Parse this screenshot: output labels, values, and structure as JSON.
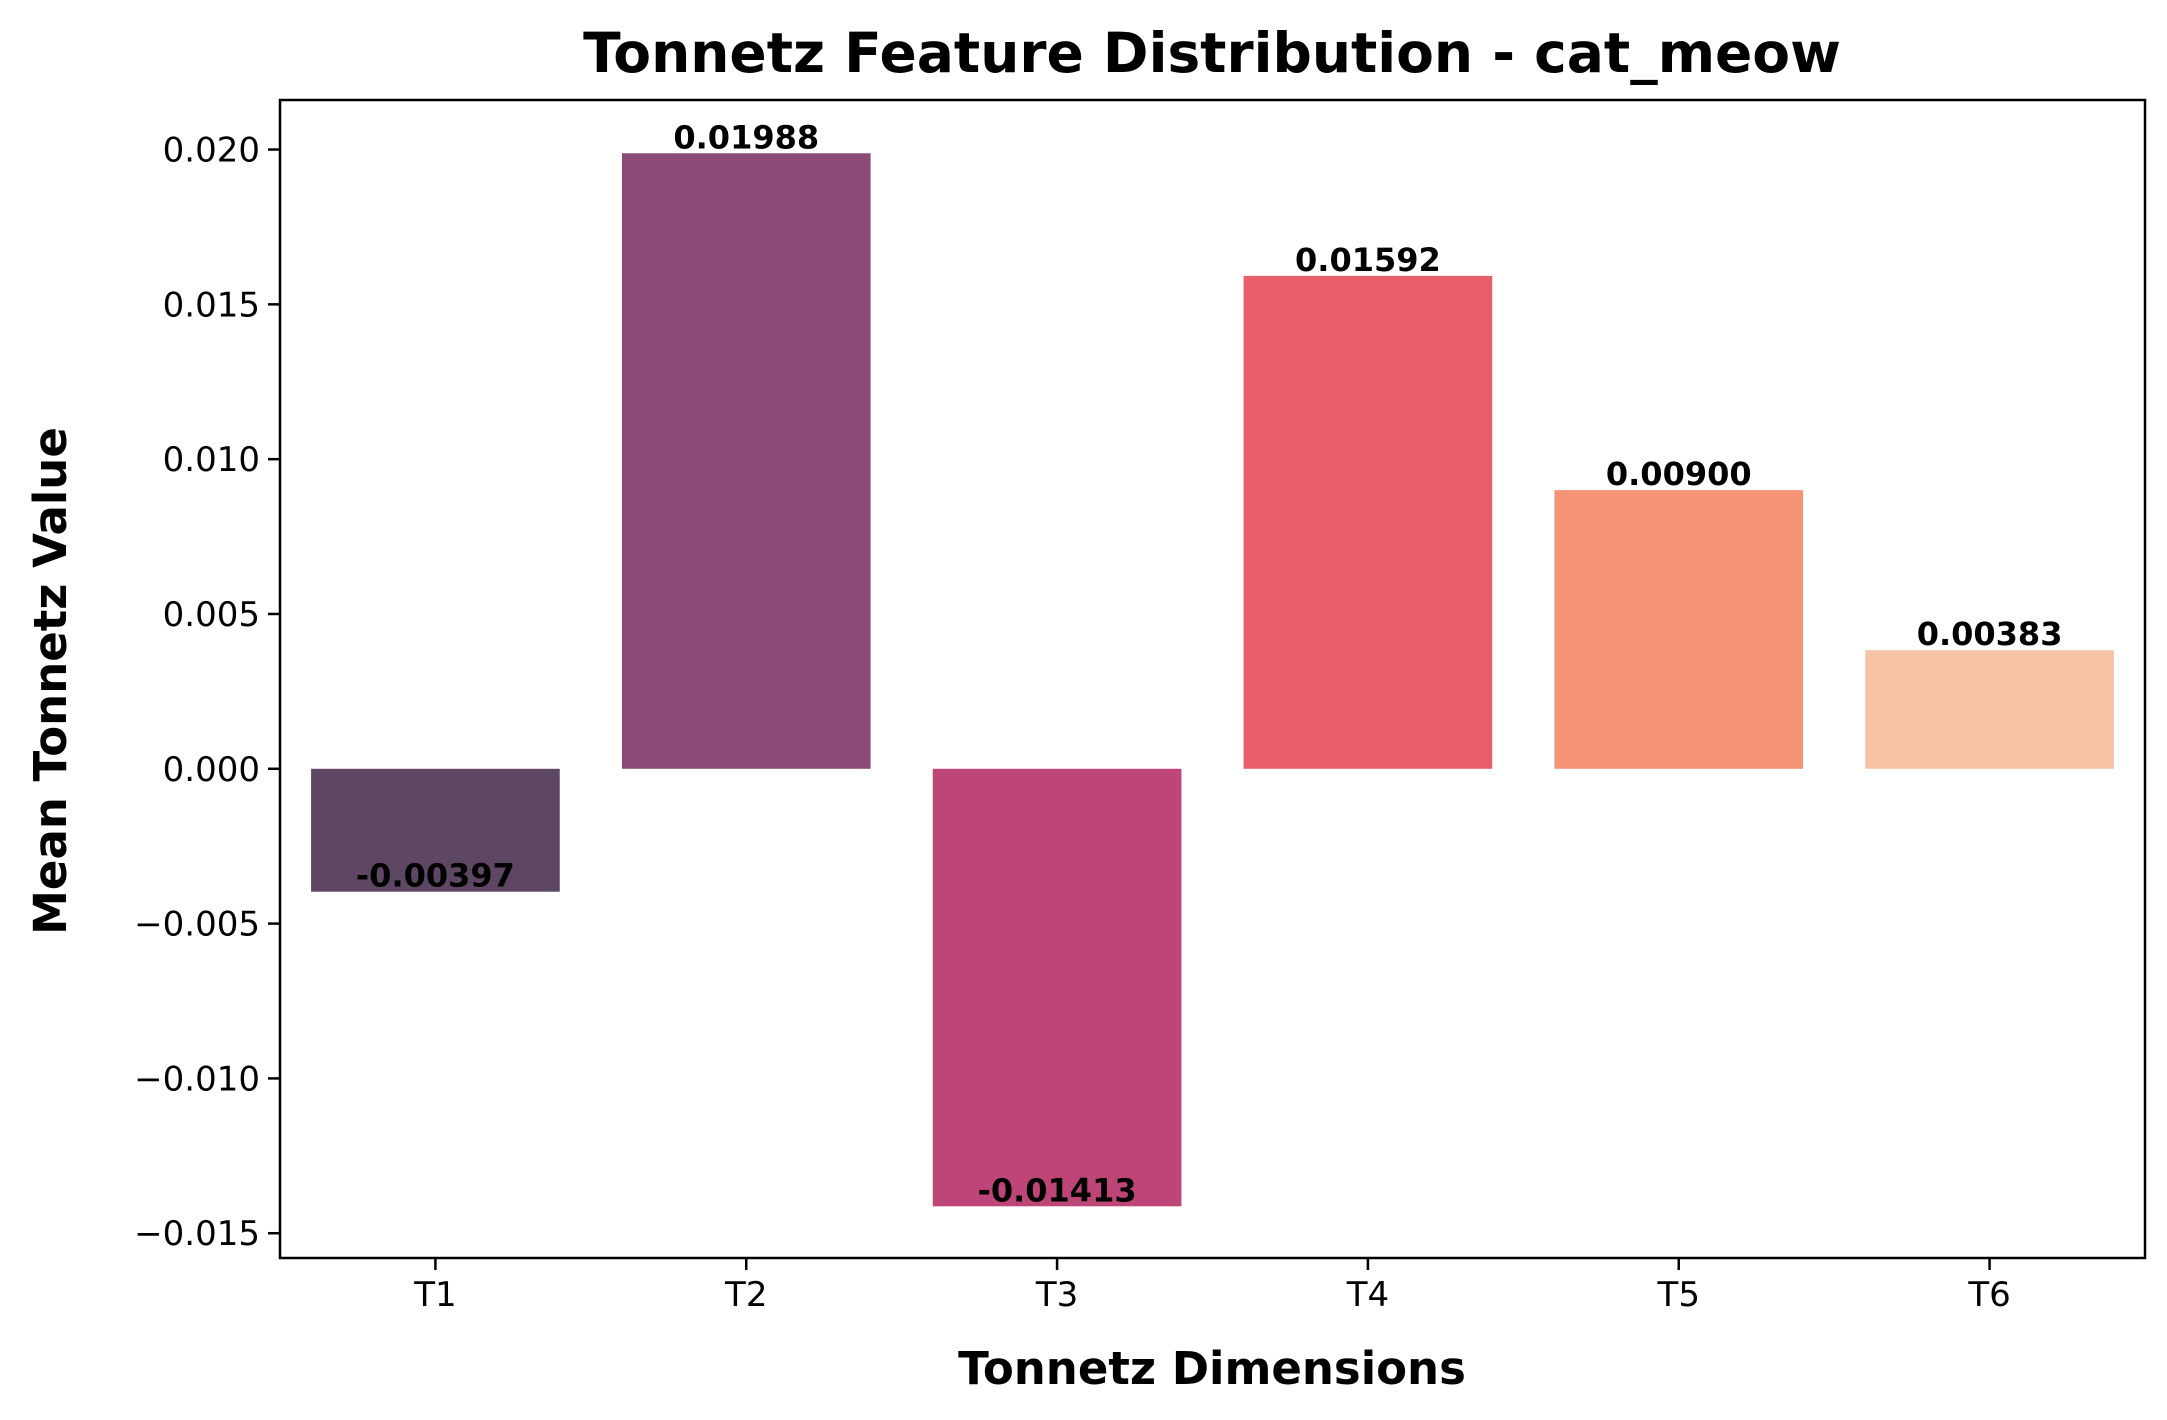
{
  "chart_data": {
    "type": "bar",
    "title": "Tonnetz Feature Distribution - cat_meow",
    "xlabel": "Tonnetz Dimensions",
    "ylabel": "Mean Tonnetz Value",
    "categories": [
      "T1",
      "T2",
      "T3",
      "T4",
      "T5",
      "T6"
    ],
    "values": [
      -0.00397,
      0.01988,
      -0.01413,
      0.01592,
      0.009,
      0.00383
    ],
    "value_labels": [
      "-0.00397",
      "0.01988",
      "-0.01413",
      "0.01592",
      "0.00900",
      "0.00383"
    ],
    "colors": [
      "#5e4763",
      "#8a4c76",
      "#bd4577",
      "#e85e6b",
      "#f49376",
      "#f6c3a6"
    ],
    "ylim": [
      -0.0158,
      0.0216
    ],
    "yticks": [
      -0.015,
      -0.01,
      -0.005,
      0.0,
      0.005,
      0.01,
      0.015,
      0.02
    ],
    "ytick_labels": [
      "−0.015",
      "−0.010",
      "−0.005",
      "0.000",
      "0.005",
      "0.010",
      "0.015",
      "0.020"
    ],
    "grid": false,
    "legend": "none"
  }
}
